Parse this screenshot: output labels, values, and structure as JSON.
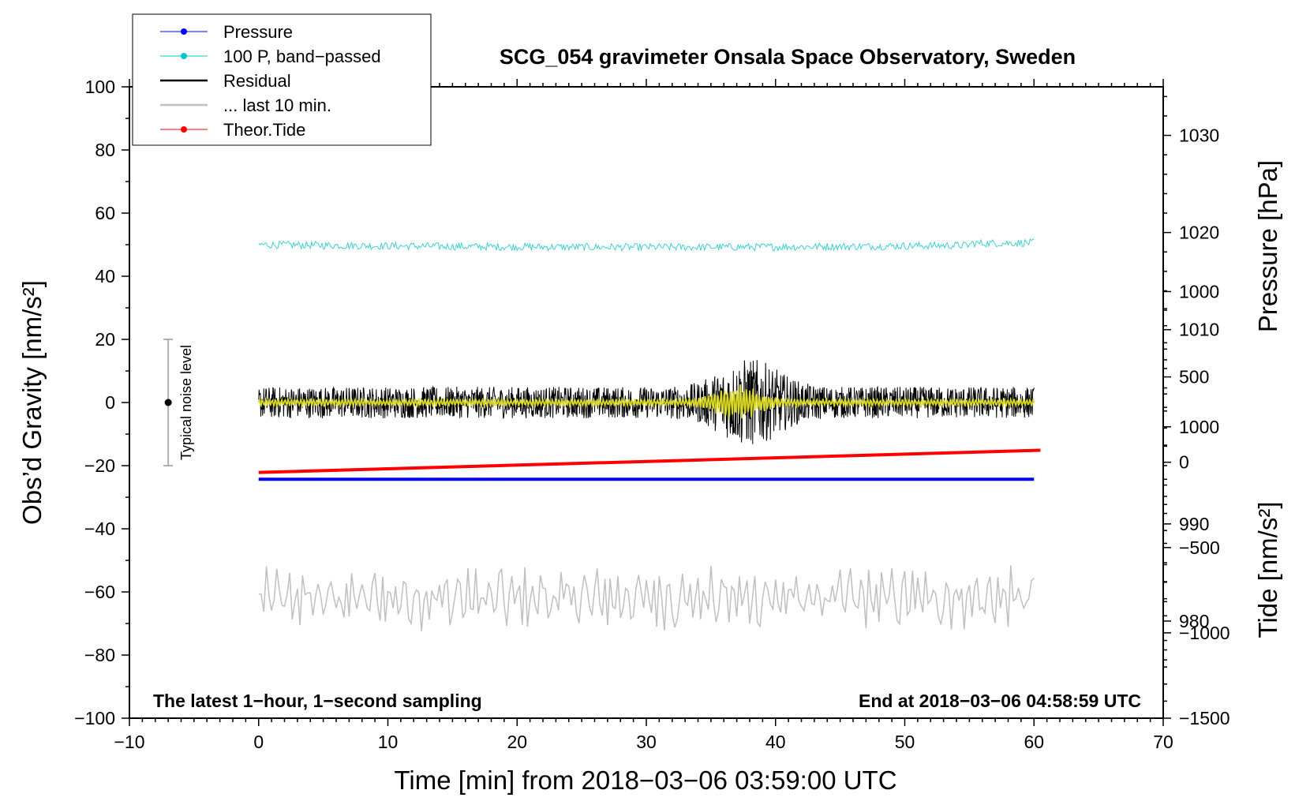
{
  "chart_data": {
    "type": "line",
    "title": "SCG_054 gravimeter Onsala Space Observatory, Sweden",
    "xlabel": "Time [min] from 2018−03−06 03:59:00 UTC",
    "ylabel_left": "Obs’d Gravity [nm/s²]",
    "ylabel_right_pressure": "Pressure [hPa]",
    "ylabel_right_tide": "Tide [nm/s²]",
    "xlim": [
      -10,
      70
    ],
    "ylim_left": [
      -100,
      100
    ],
    "pressure_range": [
      970,
      1035
    ],
    "tide_range": [
      -1500,
      2200
    ],
    "x_ticks": [
      {
        "value": -10,
        "label": "−10"
      },
      {
        "value": 0,
        "label": "0"
      },
      {
        "value": 10,
        "label": "10"
      },
      {
        "value": 20,
        "label": "20"
      },
      {
        "value": 30,
        "label": "30"
      },
      {
        "value": 40,
        "label": "40"
      },
      {
        "value": 50,
        "label": "50"
      },
      {
        "value": 60,
        "label": "60"
      },
      {
        "value": 70,
        "label": "70"
      }
    ],
    "y_left_ticks": [
      {
        "value": 100,
        "label": "100"
      },
      {
        "value": 80,
        "label": "80"
      },
      {
        "value": 60,
        "label": "60"
      },
      {
        "value": 40,
        "label": "40"
      },
      {
        "value": 20,
        "label": "20"
      },
      {
        "value": 0,
        "label": "0"
      },
      {
        "value": -20,
        "label": "−20"
      },
      {
        "value": -40,
        "label": "−40"
      },
      {
        "value": -60,
        "label": "−60"
      },
      {
        "value": -80,
        "label": "−80"
      },
      {
        "value": -100,
        "label": "−100"
      }
    ],
    "pressure_ticks": [
      {
        "value": 1030,
        "label": "1030"
      },
      {
        "value": 1020,
        "label": "1020"
      },
      {
        "value": 1010,
        "label": "1010"
      },
      {
        "value": 1000,
        "label": "1000"
      },
      {
        "value": 990,
        "label": "990"
      },
      {
        "value": 980,
        "label": "980"
      }
    ],
    "tide_ticks": [
      {
        "value": 1000,
        "label": "1000"
      },
      {
        "value": 500,
        "label": "500"
      },
      {
        "value": 0,
        "label": "0"
      },
      {
        "value": -500,
        "label": "−500"
      },
      {
        "value": -1000,
        "label": "−1000"
      },
      {
        "value": -1500,
        "label": "−1500"
      }
    ],
    "legend": [
      {
        "label": "Pressure",
        "color": "#0000ff",
        "marker": true
      },
      {
        "label": "100 P, band−passed",
        "color": "#00c8c8",
        "marker": true
      },
      {
        "label": "Residual",
        "color": "#000000",
        "marker": false
      },
      {
        "label": "... last 10 min.",
        "color": "#c0c0c0",
        "marker": false
      },
      {
        "label": "Theor.Tide",
        "color": "#ff0000",
        "marker": true
      }
    ],
    "series": [
      {
        "name": "Pressure",
        "axis": "pressure",
        "color": "#0000ff",
        "x": [
          0,
          60
        ],
        "values": [
          994.6,
          994.6
        ]
      },
      {
        "name": "100 P, band-passed",
        "axis": "left",
        "color": "#40d0d0",
        "x_range": [
          0,
          60
        ],
        "mean": 50,
        "noise_amplitude": 1.2
      },
      {
        "name": "Residual",
        "axis": "left",
        "color": "#000000",
        "x_range": [
          0,
          60
        ],
        "typical_range": [
          -8,
          8
        ],
        "burst_center": 38,
        "burst_range": [
          -20,
          19
        ]
      },
      {
        "name": "Residual (smoothed)",
        "axis": "left",
        "color": "#d8d820",
        "x_range": [
          0,
          60
        ],
        "typical_range": [
          -2,
          2
        ]
      },
      {
        "name": "... last 10 min.",
        "axis": "left",
        "color": "#c0c0c0",
        "x_range": [
          0,
          60
        ],
        "mean": -62,
        "range": [
          -73,
          -48
        ]
      },
      {
        "name": "Theor.Tide",
        "axis": "tide",
        "color": "#ff0000",
        "x": [
          0,
          60.5
        ],
        "values": [
          -60,
          70
        ]
      }
    ],
    "noise_level": {
      "label": "Typical noise level",
      "x": -7,
      "center": 0,
      "range": [
        -20,
        20
      ]
    },
    "annotations": {
      "left": "The latest 1−hour, 1−second sampling",
      "right": "End at 2018−03−06 04:58:59 UTC"
    }
  }
}
